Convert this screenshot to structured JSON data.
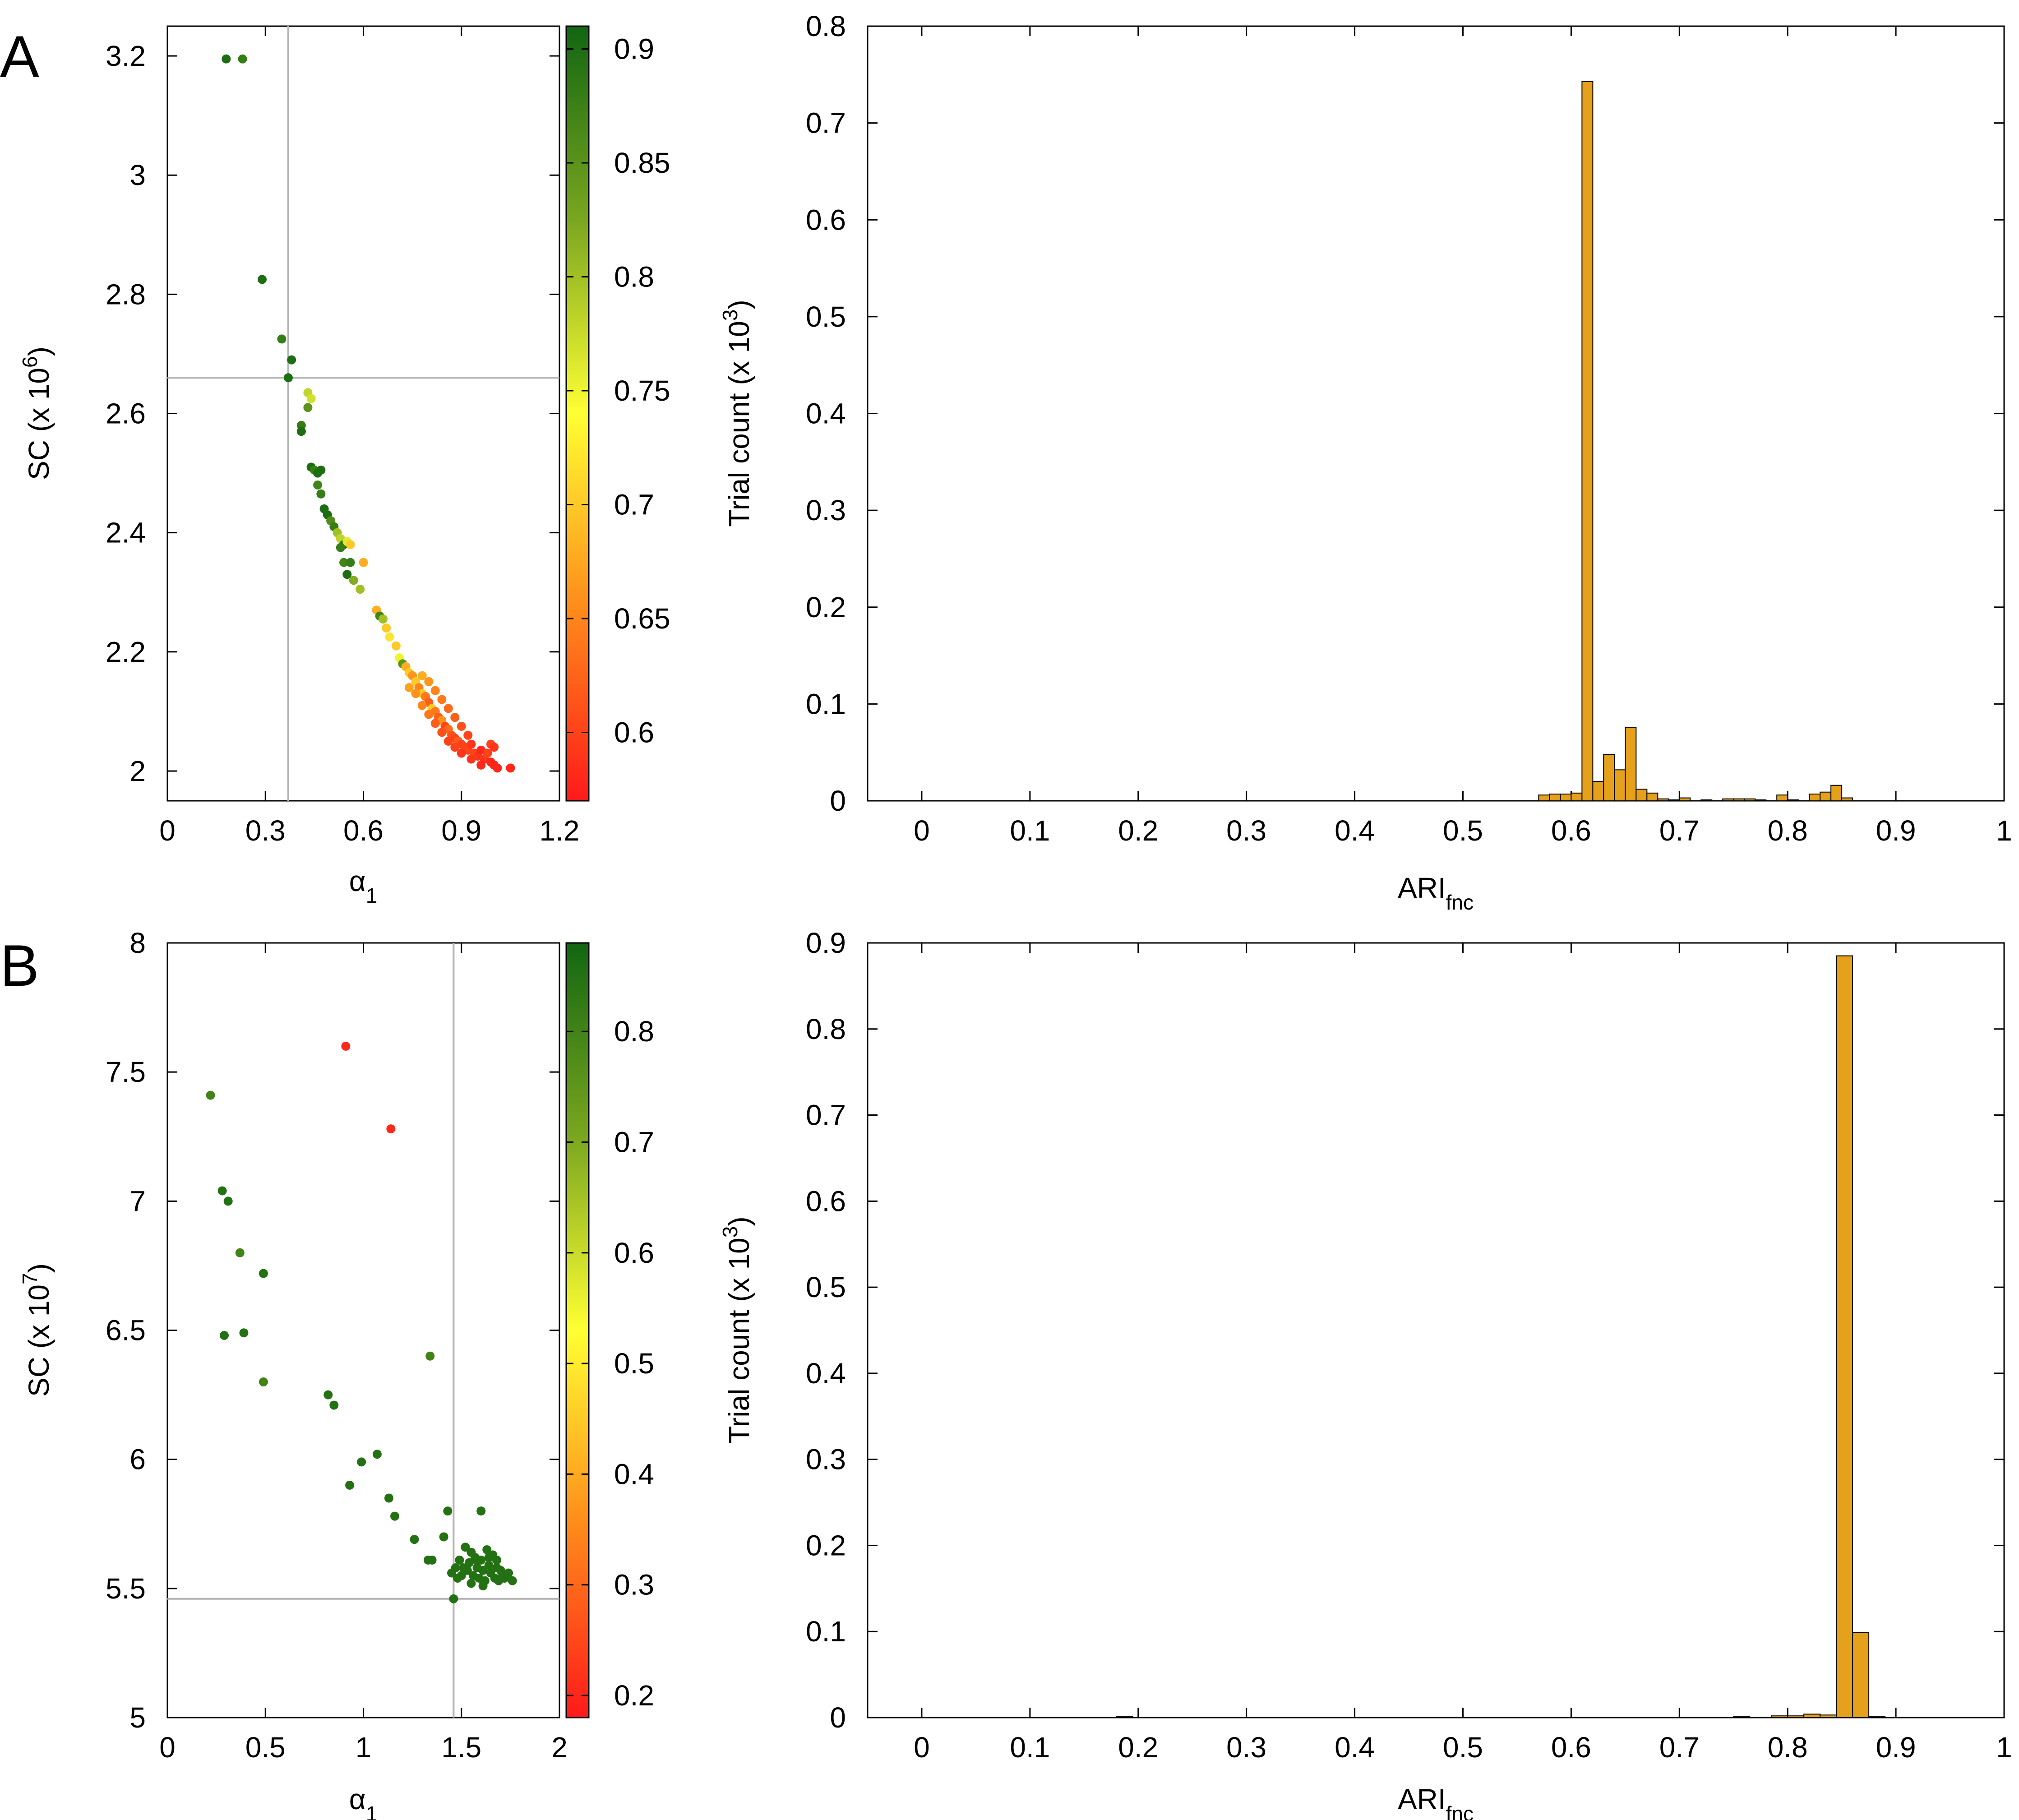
{
  "panels": [
    {
      "letter": "A",
      "scatter": {
        "xlabel_main": "α",
        "xlabel_sub": "1",
        "ylabel_main": "SC (x 10",
        "ylabel_sup": "6",
        "ylabel_end": ")",
        "xlim": [
          0,
          1.2
        ],
        "ylim": [
          1.95,
          3.25
        ],
        "xticks": [
          "0",
          "0.3",
          "0.6",
          "0.9",
          "1.2"
        ],
        "xtick_values": [
          0,
          0.3,
          0.6,
          0.9,
          1.2
        ],
        "yticks": [
          "2",
          "2.2",
          "2.4",
          "2.6",
          "2.8",
          "3",
          "3.2"
        ],
        "ytick_values": [
          2,
          2.2,
          2.4,
          2.6,
          2.8,
          3,
          3.2
        ],
        "colorbar": {
          "min": 0.57,
          "max": 0.91,
          "ticks": [
            "0.6",
            "0.65",
            "0.7",
            "0.75",
            "0.8",
            "0.85",
            "0.9"
          ],
          "tick_values": [
            0.6,
            0.65,
            0.7,
            0.75,
            0.8,
            0.85,
            0.9
          ]
        },
        "ref_x": 0.37,
        "ref_y": 2.66
      },
      "histogram": {
        "xlabel_main": "ARI",
        "xlabel_sub": "fnc",
        "ylabel_main": "Trial count (x 10",
        "ylabel_sup": "3",
        "ylabel_end": ")",
        "xlim": [
          -0.05,
          1.0
        ],
        "ylim": [
          0,
          0.8
        ],
        "xticks": [
          "0",
          "0.1",
          "0.2",
          "0.3",
          "0.4",
          "0.5",
          "0.6",
          "0.7",
          "0.8",
          "0.9",
          "1"
        ],
        "xtick_values": [
          0,
          0.1,
          0.2,
          0.3,
          0.4,
          0.5,
          0.6,
          0.7,
          0.8,
          0.9,
          1.0
        ],
        "yticks": [
          "0",
          "0.1",
          "0.2",
          "0.3",
          "0.4",
          "0.5",
          "0.6",
          "0.7",
          "0.8"
        ],
        "ytick_values": [
          0,
          0.1,
          0.2,
          0.3,
          0.4,
          0.5,
          0.6,
          0.7,
          0.8
        ]
      }
    },
    {
      "letter": "B",
      "scatter": {
        "xlabel_main": "α",
        "xlabel_sub": "1",
        "ylabel_main": "SC (x 10",
        "ylabel_sup": "7",
        "ylabel_end": ")",
        "xlim": [
          0,
          2
        ],
        "ylim": [
          5,
          8
        ],
        "xticks": [
          "0",
          "0.5",
          "1",
          "1.5",
          "2"
        ],
        "xtick_values": [
          0,
          0.5,
          1,
          1.5,
          2
        ],
        "yticks": [
          "5",
          "5.5",
          "6",
          "6.5",
          "7",
          "7.5",
          "8"
        ],
        "ytick_values": [
          5,
          5.5,
          6,
          6.5,
          7,
          7.5,
          8
        ],
        "colorbar": {
          "min": 0.18,
          "max": 0.88,
          "ticks": [
            "0.2",
            "0.3",
            "0.4",
            "0.5",
            "0.6",
            "0.7",
            "0.8"
          ],
          "tick_values": [
            0.2,
            0.3,
            0.4,
            0.5,
            0.6,
            0.7,
            0.8
          ]
        },
        "ref_x": 1.46,
        "ref_y": 5.46
      },
      "histogram": {
        "xlabel_main": "ARI",
        "xlabel_sub": "fnc",
        "ylabel_main": "Trial count (x 10",
        "ylabel_sup": "3",
        "ylabel_end": ")",
        "xlim": [
          -0.05,
          1.0
        ],
        "ylim": [
          0,
          0.9
        ],
        "xticks": [
          "0",
          "0.1",
          "0.2",
          "0.3",
          "0.4",
          "0.5",
          "0.6",
          "0.7",
          "0.8",
          "0.9",
          "1"
        ],
        "xtick_values": [
          0,
          0.1,
          0.2,
          0.3,
          0.4,
          0.5,
          0.6,
          0.7,
          0.8,
          0.9,
          1.0
        ],
        "yticks": [
          "0",
          "0.1",
          "0.2",
          "0.3",
          "0.4",
          "0.5",
          "0.6",
          "0.7",
          "0.8",
          "0.9"
        ],
        "ytick_values": [
          0,
          0.1,
          0.2,
          0.3,
          0.4,
          0.5,
          0.6,
          0.7,
          0.8,
          0.9
        ]
      }
    }
  ],
  "colors": {
    "bar_fill": "#e6a11c",
    "colormap": [
      "#ff1a1a",
      "#ff8c1a",
      "#ffff33",
      "#7aa61f",
      "#116611"
    ]
  },
  "chart_data": [
    {
      "type": "scatter",
      "panel": "A",
      "xlabel": "α1",
      "ylabel": "SC (x 10^6)",
      "xlim": [
        0,
        1.2
      ],
      "ylim": [
        1.95,
        3.25
      ],
      "grid": false,
      "colorbar_range": [
        0.57,
        0.91
      ],
      "points": [
        [
          0.18,
          3.195,
          0.9
        ],
        [
          0.23,
          3.195,
          0.88
        ],
        [
          0.29,
          2.825,
          0.9
        ],
        [
          0.35,
          2.725,
          0.88
        ],
        [
          0.38,
          2.69,
          0.9
        ],
        [
          0.37,
          2.66,
          0.9
        ],
        [
          0.43,
          2.635,
          0.78
        ],
        [
          0.44,
          2.625,
          0.77
        ],
        [
          0.43,
          2.61,
          0.85
        ],
        [
          0.41,
          2.58,
          0.88
        ],
        [
          0.41,
          2.57,
          0.9
        ],
        [
          0.44,
          2.51,
          0.9
        ],
        [
          0.45,
          2.505,
          0.88
        ],
        [
          0.46,
          2.5,
          0.9
        ],
        [
          0.47,
          2.505,
          0.9
        ],
        [
          0.46,
          2.48,
          0.87
        ],
        [
          0.47,
          2.465,
          0.88
        ],
        [
          0.48,
          2.44,
          0.9
        ],
        [
          0.49,
          2.43,
          0.9
        ],
        [
          0.5,
          2.42,
          0.86
        ],
        [
          0.51,
          2.41,
          0.88
        ],
        [
          0.52,
          2.4,
          0.8
        ],
        [
          0.53,
          2.39,
          0.78
        ],
        [
          0.54,
          2.38,
          0.9
        ],
        [
          0.55,
          2.385,
          0.76
        ],
        [
          0.53,
          2.375,
          0.88
        ],
        [
          0.56,
          2.38,
          0.7
        ],
        [
          0.54,
          2.35,
          0.87
        ],
        [
          0.56,
          2.35,
          0.88
        ],
        [
          0.6,
          2.35,
          0.68
        ],
        [
          0.55,
          2.33,
          0.9
        ],
        [
          0.57,
          2.32,
          0.82
        ],
        [
          0.59,
          2.305,
          0.8
        ],
        [
          0.64,
          2.27,
          0.68
        ],
        [
          0.65,
          2.26,
          0.87
        ],
        [
          0.66,
          2.255,
          0.8
        ],
        [
          0.67,
          2.24,
          0.7
        ],
        [
          0.68,
          2.225,
          0.72
        ],
        [
          0.7,
          2.21,
          0.7
        ],
        [
          0.71,
          2.19,
          0.75
        ],
        [
          0.72,
          2.18,
          0.85
        ],
        [
          0.73,
          2.175,
          0.68
        ],
        [
          0.74,
          2.165,
          0.7
        ],
        [
          0.75,
          2.16,
          0.66
        ],
        [
          0.76,
          2.15,
          0.7
        ],
        [
          0.77,
          2.14,
          0.65
        ],
        [
          0.78,
          2.13,
          0.7
        ],
        [
          0.79,
          2.125,
          0.64
        ],
        [
          0.8,
          2.115,
          0.62
        ],
        [
          0.81,
          2.105,
          0.7
        ],
        [
          0.82,
          2.1,
          0.64
        ],
        [
          0.83,
          2.09,
          0.62
        ],
        [
          0.84,
          2.085,
          0.66
        ],
        [
          0.85,
          2.075,
          0.6
        ],
        [
          0.86,
          2.07,
          0.63
        ],
        [
          0.87,
          2.06,
          0.61
        ],
        [
          0.88,
          2.055,
          0.6
        ],
        [
          0.89,
          2.05,
          0.62
        ],
        [
          0.9,
          2.045,
          0.6
        ],
        [
          0.91,
          2.04,
          0.6
        ],
        [
          0.92,
          2.035,
          0.6
        ],
        [
          0.93,
          2.045,
          0.59
        ],
        [
          0.94,
          2.03,
          0.6
        ],
        [
          0.95,
          2.025,
          0.59
        ],
        [
          0.96,
          2.035,
          0.58
        ],
        [
          0.97,
          2.02,
          0.59
        ],
        [
          0.98,
          2.03,
          0.6
        ],
        [
          0.99,
          2.015,
          0.58
        ],
        [
          1.0,
          2.01,
          0.58
        ],
        [
          1.01,
          2.005,
          0.58
        ],
        [
          1.05,
          2.005,
          0.58
        ],
        [
          0.99,
          2.045,
          0.6
        ],
        [
          1.0,
          2.04,
          0.59
        ],
        [
          0.78,
          2.16,
          0.68
        ],
        [
          0.8,
          2.15,
          0.66
        ],
        [
          0.82,
          2.135,
          0.65
        ],
        [
          0.84,
          2.12,
          0.64
        ],
        [
          0.86,
          2.105,
          0.63
        ],
        [
          0.88,
          2.09,
          0.62
        ],
        [
          0.9,
          2.075,
          0.61
        ],
        [
          0.92,
          2.06,
          0.6
        ],
        [
          0.74,
          2.14,
          0.67
        ],
        [
          0.76,
          2.13,
          0.66
        ],
        [
          0.78,
          2.11,
          0.65
        ],
        [
          0.8,
          2.095,
          0.64
        ],
        [
          0.82,
          2.08,
          0.62
        ],
        [
          0.84,
          2.065,
          0.61
        ],
        [
          0.86,
          2.05,
          0.6
        ],
        [
          0.88,
          2.04,
          0.6
        ],
        [
          0.9,
          2.03,
          0.59
        ],
        [
          0.93,
          2.02,
          0.59
        ],
        [
          0.96,
          2.01,
          0.58
        ]
      ]
    },
    {
      "type": "bar",
      "panel": "A",
      "xlabel": "ARIfnc",
      "ylabel": "Trial count (x 10^3)",
      "xlim": [
        -0.05,
        1.0
      ],
      "ylim": [
        0,
        0.8
      ],
      "bin_width": 0.01,
      "bins": [
        [
          0.57,
          0.006
        ],
        [
          0.58,
          0.007
        ],
        [
          0.59,
          0.007
        ],
        [
          0.6,
          0.008
        ],
        [
          0.61,
          0.743
        ],
        [
          0.62,
          0.02
        ],
        [
          0.63,
          0.048
        ],
        [
          0.64,
          0.032
        ],
        [
          0.65,
          0.076
        ],
        [
          0.66,
          0.012
        ],
        [
          0.67,
          0.008
        ],
        [
          0.68,
          0.002
        ],
        [
          0.69,
          0.001
        ],
        [
          0.7,
          0.003
        ],
        [
          0.72,
          0.001
        ],
        [
          0.74,
          0.002
        ],
        [
          0.75,
          0.002
        ],
        [
          0.76,
          0.002
        ],
        [
          0.77,
          0.001
        ],
        [
          0.79,
          0.006
        ],
        [
          0.8,
          0.001
        ],
        [
          0.82,
          0.007
        ],
        [
          0.83,
          0.009
        ],
        [
          0.84,
          0.016
        ],
        [
          0.85,
          0.003
        ]
      ]
    },
    {
      "type": "scatter",
      "panel": "B",
      "xlabel": "α1",
      "ylabel": "SC (x 10^7)",
      "xlim": [
        0,
        2
      ],
      "ylim": [
        5,
        8
      ],
      "grid": false,
      "colorbar_range": [
        0.18,
        0.88
      ],
      "points": [
        [
          0.91,
          7.6,
          0.2
        ],
        [
          1.14,
          7.28,
          0.2
        ],
        [
          0.22,
          7.41,
          0.8
        ],
        [
          0.28,
          7.04,
          0.85
        ],
        [
          0.31,
          7.0,
          0.85
        ],
        [
          0.37,
          6.8,
          0.8
        ],
        [
          0.49,
          6.72,
          0.85
        ],
        [
          0.29,
          6.48,
          0.85
        ],
        [
          0.39,
          6.49,
          0.85
        ],
        [
          0.49,
          6.3,
          0.8
        ],
        [
          1.34,
          6.4,
          0.8
        ],
        [
          0.82,
          6.25,
          0.85
        ],
        [
          0.85,
          6.21,
          0.85
        ],
        [
          1.07,
          6.02,
          0.85
        ],
        [
          0.99,
          5.99,
          0.85
        ],
        [
          0.93,
          5.9,
          0.85
        ],
        [
          1.13,
          5.85,
          0.85
        ],
        [
          1.16,
          5.78,
          0.85
        ],
        [
          1.43,
          5.8,
          0.85
        ],
        [
          1.6,
          5.8,
          0.85
        ],
        [
          1.26,
          5.69,
          0.85
        ],
        [
          1.41,
          5.7,
          0.85
        ],
        [
          1.33,
          5.61,
          0.85
        ],
        [
          1.35,
          5.61,
          0.85
        ],
        [
          1.46,
          5.46,
          0.85
        ],
        [
          1.47,
          5.58,
          0.85
        ],
        [
          1.49,
          5.61,
          0.85
        ],
        [
          1.5,
          5.55,
          0.85
        ],
        [
          1.52,
          5.66,
          0.85
        ],
        [
          1.53,
          5.57,
          0.85
        ],
        [
          1.54,
          5.6,
          0.85
        ],
        [
          1.55,
          5.64,
          0.85
        ],
        [
          1.56,
          5.55,
          0.85
        ],
        [
          1.57,
          5.62,
          0.85
        ],
        [
          1.58,
          5.58,
          0.85
        ],
        [
          1.59,
          5.54,
          0.85
        ],
        [
          1.6,
          5.61,
          0.85
        ],
        [
          1.61,
          5.57,
          0.85
        ],
        [
          1.62,
          5.53,
          0.85
        ],
        [
          1.63,
          5.65,
          0.85
        ],
        [
          1.64,
          5.59,
          0.85
        ],
        [
          1.65,
          5.56,
          0.85
        ],
        [
          1.66,
          5.63,
          0.85
        ],
        [
          1.67,
          5.54,
          0.85
        ],
        [
          1.68,
          5.58,
          0.85
        ],
        [
          1.69,
          5.53,
          0.85
        ],
        [
          1.7,
          5.57,
          0.85
        ],
        [
          1.71,
          5.55,
          0.85
        ],
        [
          1.72,
          5.54,
          0.85
        ],
        [
          1.74,
          5.56,
          0.85
        ],
        [
          1.76,
          5.53,
          0.85
        ],
        [
          1.45,
          5.56,
          0.85
        ],
        [
          1.48,
          5.54,
          0.85
        ],
        [
          1.51,
          5.58,
          0.85
        ],
        [
          1.58,
          5.61,
          0.85
        ],
        [
          1.64,
          5.62,
          0.85
        ],
        [
          1.68,
          5.61,
          0.85
        ],
        [
          1.55,
          5.52,
          0.85
        ],
        [
          1.61,
          5.51,
          0.85
        ]
      ]
    },
    {
      "type": "bar",
      "panel": "B",
      "xlabel": "ARIfnc",
      "ylabel": "Trial count (x 10^3)",
      "xlim": [
        -0.05,
        1.0
      ],
      "ylim": [
        0,
        0.9
      ],
      "bin_width": 0.015,
      "bins": [
        [
          0.18,
          0.001
        ],
        [
          0.75,
          0.001
        ],
        [
          0.785,
          0.002
        ],
        [
          0.8,
          0.002
        ],
        [
          0.815,
          0.004
        ],
        [
          0.83,
          0.003
        ],
        [
          0.845,
          0.885
        ],
        [
          0.86,
          0.099
        ],
        [
          0.875,
          0.001
        ]
      ]
    }
  ]
}
